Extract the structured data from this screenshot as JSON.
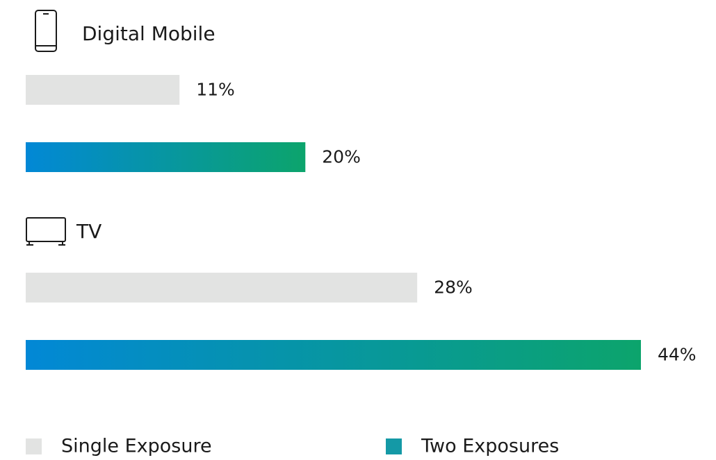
{
  "chart_data": {
    "type": "bar",
    "orientation": "horizontal",
    "categories": [
      "Digital Mobile",
      "TV"
    ],
    "series": [
      {
        "name": "Single Exposure",
        "color": "#e2e3e2",
        "values": [
          11,
          28
        ],
        "value_labels": [
          "11%",
          "28%"
        ]
      },
      {
        "name": "Two Exposures",
        "color": "#1499a6",
        "gradient": [
          "#0288d6",
          "#0ca46c"
        ],
        "values": [
          20,
          44
        ],
        "value_labels": [
          "20%",
          "44%"
        ]
      }
    ]
  }
}
